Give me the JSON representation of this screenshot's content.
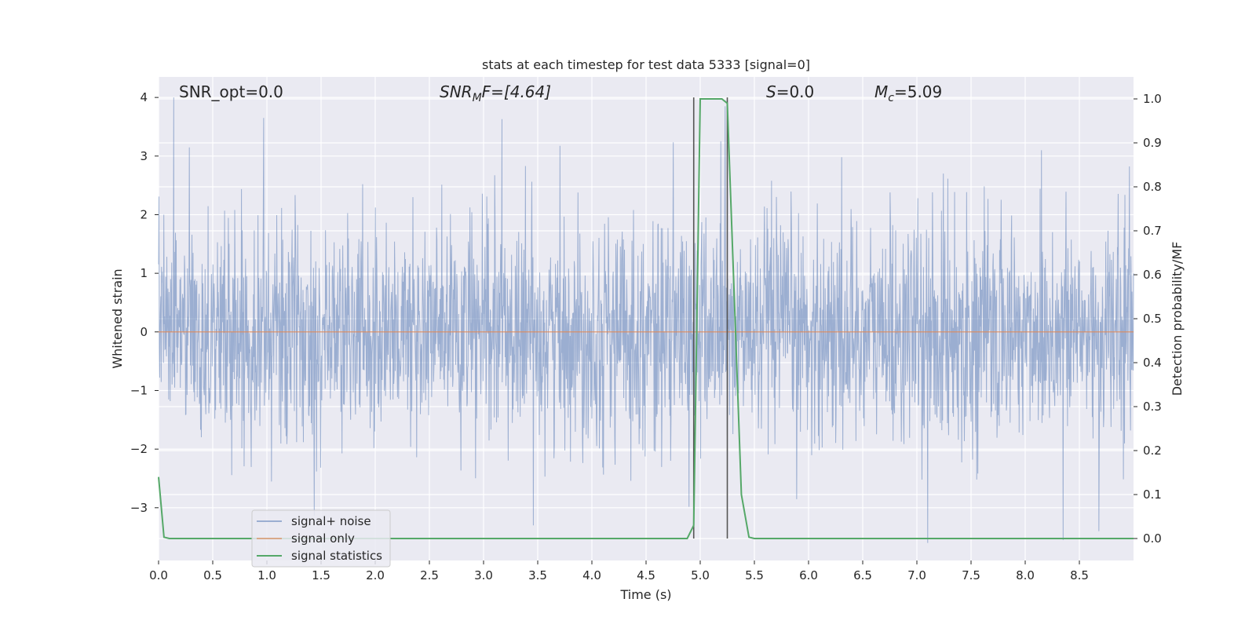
{
  "chart_data": {
    "type": "line",
    "title": "stats at each timestep for test data 5333 [signal=0]",
    "xlabel": "Time (s)",
    "ylabel_left": "Whitened strain",
    "ylabel_right": "Detection probability/MF",
    "xlim": [
      0,
      9
    ],
    "ylim_left": [
      -3.9,
      4.35
    ],
    "ylim_right": [
      -0.05,
      1.05
    ],
    "x_ticks": [
      "0.0",
      "0.5",
      "1.0",
      "1.5",
      "2.0",
      "2.5",
      "3.0",
      "3.5",
      "4.0",
      "4.5",
      "5.0",
      "5.5",
      "6.0",
      "6.5",
      "7.0",
      "7.5",
      "8.0",
      "8.5"
    ],
    "y_left_ticks": [
      "−3",
      "−2",
      "−1",
      "0",
      "1",
      "2",
      "3",
      "4"
    ],
    "y_right_ticks": [
      "0.0",
      "0.1",
      "0.2",
      "0.3",
      "0.4",
      "0.5",
      "0.6",
      "0.7",
      "0.8",
      "0.9",
      "1.0"
    ],
    "grid": true,
    "legend_position": "lower-left",
    "legend": [
      "signal+ noise",
      "signal only",
      "signal statistics"
    ],
    "annotations": {
      "snr_opt": "SNR_opt=0.0",
      "snr_mf_sym": "SNR",
      "snr_mf_sub": "M",
      "snr_mf_rest": "F=[4.64]",
      "s_sym": "S",
      "s_rest": "=0.0",
      "mc_sym": "M",
      "mc_sub": "c",
      "mc_rest": "=5.09"
    },
    "vertical_lines_x": [
      4.94,
      5.25
    ],
    "series": [
      {
        "name": "signal+ noise",
        "color": "#4c72b0",
        "axis": "left",
        "description_values": "whitened noise, roughly within ±2.5 with peaks near ±4",
        "peaks": [
          {
            "x": 0.14,
            "y": 4.0
          },
          {
            "x": 0.97,
            "y": 3.65
          },
          {
            "x": 3.17,
            "y": 3.63
          },
          {
            "x": 5.23,
            "y": 3.85
          },
          {
            "x": 5.19,
            "y": 3.25
          },
          {
            "x": 8.15,
            "y": 3.1
          },
          {
            "x": 7.1,
            "y": -3.6
          },
          {
            "x": 8.35,
            "y": -3.55
          },
          {
            "x": 8.68,
            "y": -3.4
          }
        ]
      },
      {
        "name": "signal only",
        "color": "#dd8452",
        "axis": "left",
        "x": [
          0,
          9
        ],
        "y": [
          0,
          0
        ]
      },
      {
        "name": "signal statistics",
        "color": "#55a868",
        "axis": "right",
        "x": [
          0.0,
          0.05,
          0.1,
          4.88,
          4.94,
          5.0,
          5.2,
          5.25,
          5.38,
          5.45,
          5.5,
          9.0
        ],
        "y": [
          0.14,
          0.003,
          0.0,
          0.0,
          0.03,
          1.0,
          1.0,
          0.99,
          0.1,
          0.003,
          0.0,
          0.0
        ]
      }
    ]
  }
}
